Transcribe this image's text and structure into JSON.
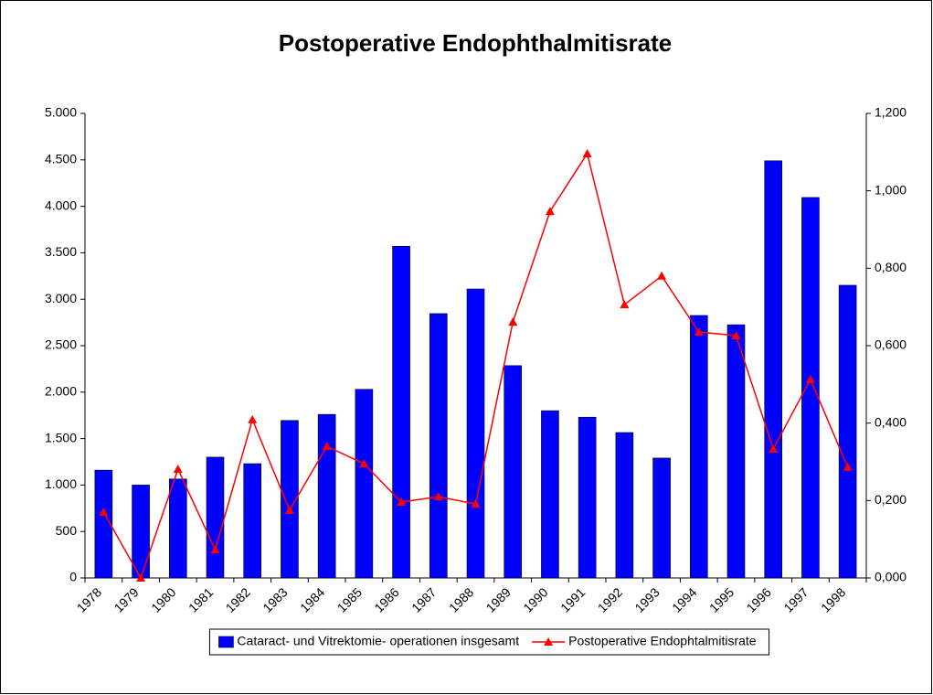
{
  "chart_data": {
    "type": "bar-line",
    "title": "Postoperative Endophthalmitisrate",
    "categories": [
      "1978",
      "1979",
      "1980",
      "1981",
      "1982",
      "1983",
      "1984",
      "1985",
      "1986",
      "1987",
      "1988",
      "1989",
      "1990",
      "1991",
      "1992",
      "1993",
      "1994",
      "1995",
      "1996",
      "1997",
      "1998"
    ],
    "series": [
      {
        "name": "Cataract- und Vitrektomie- operationen insgesamt",
        "color": "#0000ff",
        "type": "bar",
        "values": [
          1160,
          1000,
          1065,
          1300,
          1230,
          1695,
          1760,
          2030,
          3570,
          2845,
          3110,
          2285,
          1800,
          1730,
          1565,
          1290,
          2825,
          2725,
          4490,
          4095,
          3150
        ]
      },
      {
        "name": "Postoperative Endophtalmitisrate",
        "color": "#ff0000",
        "type": "line",
        "axis": "y2",
        "values": [
          0.17,
          0,
          0.281,
          0.073,
          0.409,
          0.175,
          0.34,
          0.295,
          0.196,
          0.21,
          0.191,
          0.661,
          0.947,
          1.096,
          0.706,
          0.78,
          0.635,
          0.626,
          0.333,
          0.513,
          0.286
        ]
      }
    ],
    "ylim": [
      0,
      5000
    ],
    "yticks": [
      0,
      {
        "value": 500,
        "label": "500"
      },
      {
        "value": 1000,
        "label": "1.000"
      },
      {
        "value": 1500,
        "label": "1.500"
      },
      {
        "value": 2000,
        "label": "2.000"
      },
      {
        "value": 2500,
        "label": "2.500"
      },
      {
        "value": 3000,
        "label": "3.000"
      },
      {
        "value": 3500,
        "label": "3.500"
      },
      {
        "value": 4000,
        "label": "4.000"
      },
      {
        "value": 4500,
        "label": "4.500"
      },
      {
        "value": 5000,
        "label": "5.000"
      }
    ],
    "y2lim": [
      0,
      1.2
    ],
    "y2ticks": [
      {
        "value": 0,
        "label": "0,000"
      },
      {
        "value": 0.2,
        "label": "0,200"
      },
      {
        "value": 0.4,
        "label": "0,400"
      },
      {
        "value": 0.6,
        "label": "0,600"
      },
      {
        "value": 0.8,
        "label": "0,800"
      },
      {
        "value": 1.0,
        "label": "1,000"
      },
      {
        "value": 1.2,
        "label": "1,200"
      }
    ],
    "legend": "bottom"
  }
}
